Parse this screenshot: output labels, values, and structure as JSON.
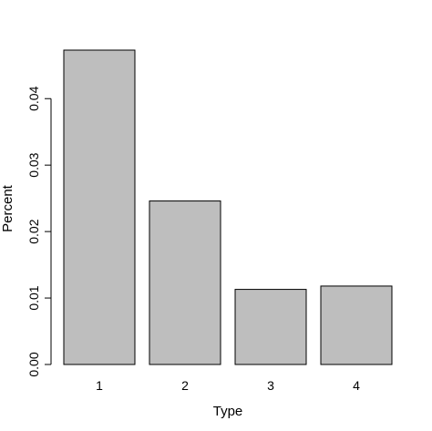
{
  "chart_data": {
    "type": "bar",
    "title": "",
    "xlabel": "Type",
    "ylabel": "Percent",
    "categories": [
      "1",
      "2",
      "3",
      "4"
    ],
    "values": [
      0.0473,
      0.0246,
      0.0113,
      0.0118
    ],
    "yticks": [
      "0.00",
      "0.01",
      "0.02",
      "0.03",
      "0.04"
    ],
    "ylim": [
      0,
      0.0473
    ],
    "bar_color": "#bebebe",
    "grid": false
  }
}
